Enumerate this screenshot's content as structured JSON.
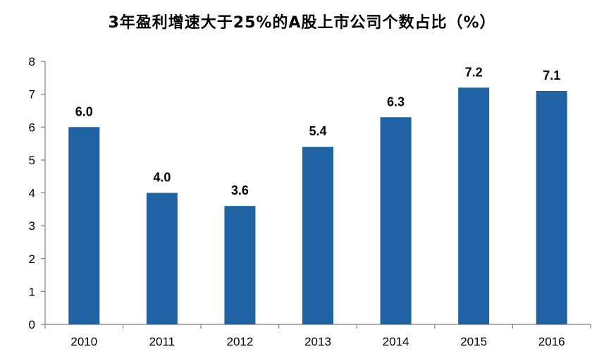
{
  "title": "3年盈利增速大于25%的A股上市公司个数占比（%）",
  "chart_data": {
    "type": "bar",
    "title": "3年盈利增速大于25%的A股上市公司个数占比（%）",
    "categories": [
      "2010",
      "2011",
      "2012",
      "2013",
      "2014",
      "2015",
      "2016"
    ],
    "values": [
      6.0,
      4.0,
      3.6,
      5.4,
      6.3,
      7.2,
      7.1
    ],
    "data_labels": [
      "6.0",
      "4.0",
      "3.6",
      "5.4",
      "6.3",
      "7.2",
      "7.1"
    ],
    "y_ticks": [
      "0",
      "1",
      "2",
      "3",
      "4",
      "5",
      "6",
      "7",
      "8"
    ],
    "ylim": [
      0,
      8
    ],
    "xlabel": "",
    "ylabel": "",
    "grid": false,
    "legend": "none",
    "bar_color": "#1f63a5",
    "axis_color": "#7f7f7f"
  }
}
